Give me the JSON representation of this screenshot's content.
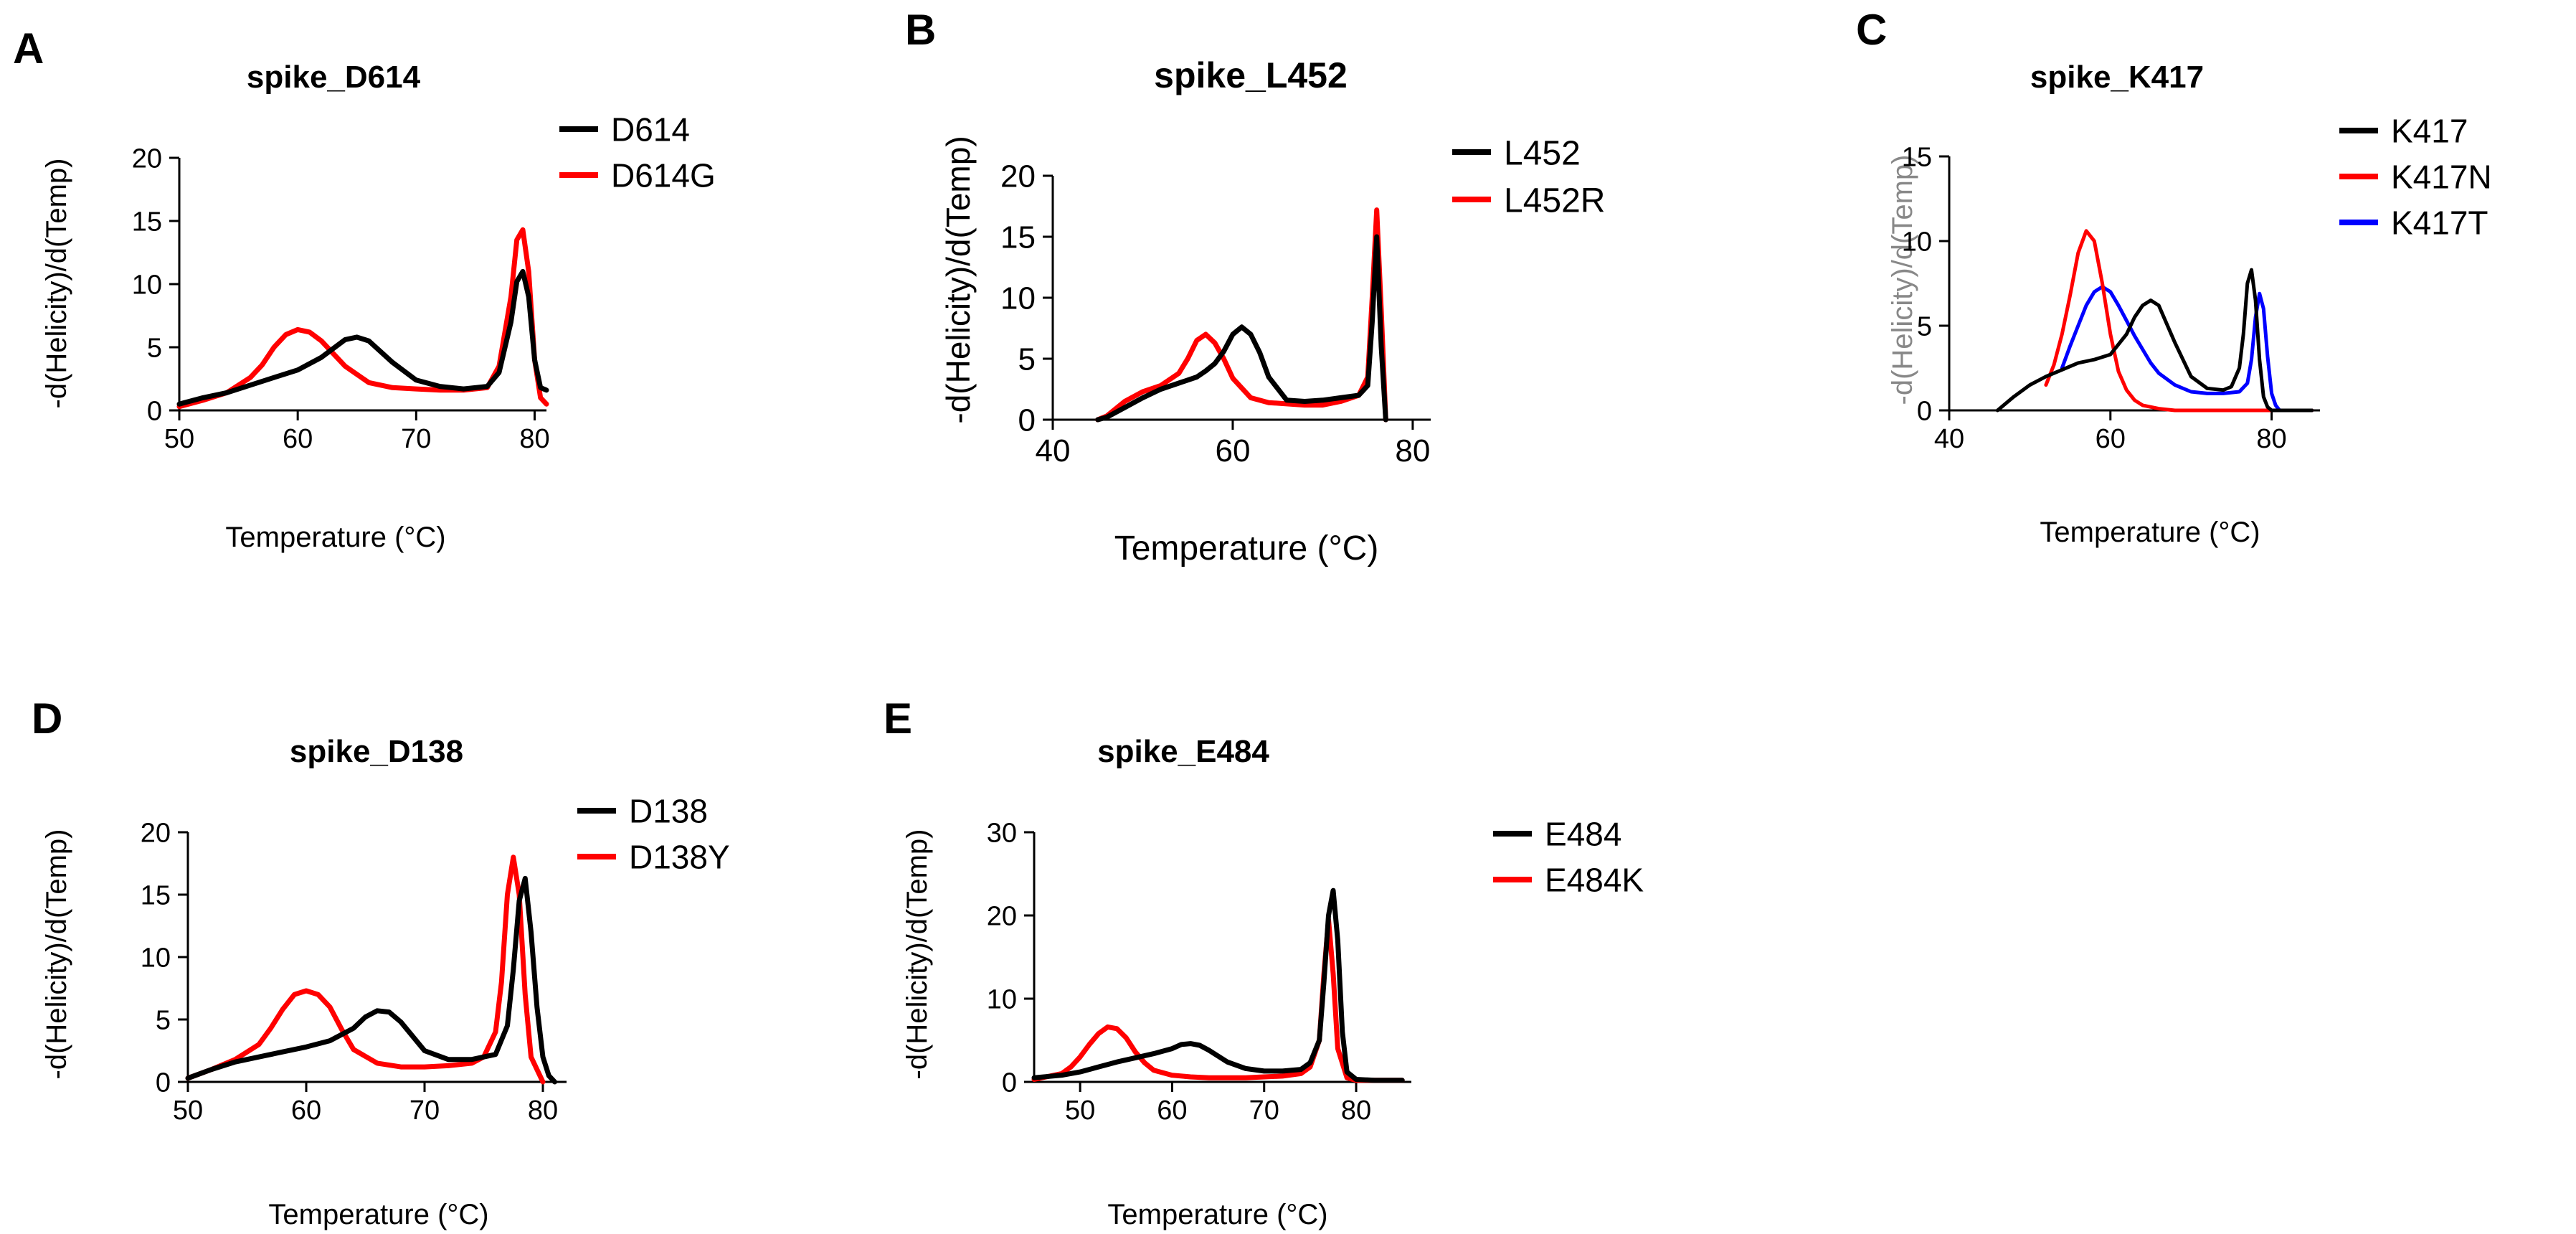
{
  "figure": {
    "chart_data": [
      {
        "panel": "A",
        "type": "line",
        "title": "spike_D614",
        "xlabel": "Temperature (°C)",
        "ylabel": "-d(Helicity)/d(Temp)",
        "xlim": [
          50,
          81
        ],
        "ylim": [
          0,
          20
        ],
        "xticks": [
          50,
          60,
          70,
          80
        ],
        "yticks": [
          0,
          5,
          10,
          15,
          20
        ],
        "legend_position": "top-right",
        "series": [
          {
            "name": "D614",
            "color": "#000000",
            "x": [
              50,
              52,
              54,
              56,
              58,
              60,
              62,
              64,
              65,
              66,
              68,
              70,
              72,
              74,
              76,
              77,
              78,
              78.5,
              79,
              79.5,
              80,
              80.5,
              81
            ],
            "y": [
              0.5,
              1,
              1.4,
              2,
              2.6,
              3.2,
              4.2,
              5.6,
              5.8,
              5.5,
              3.8,
              2.4,
              1.9,
              1.7,
              1.9,
              3,
              7,
              10.2,
              11,
              9,
              4,
              1.8,
              1.6
            ]
          },
          {
            "name": "D614G",
            "color": "#ff0000",
            "x": [
              50,
              52,
              54,
              56,
              57,
              58,
              59,
              60,
              61,
              62,
              63,
              64,
              66,
              68,
              70,
              72,
              74,
              76,
              77,
              78,
              78.5,
              79,
              79.5,
              80,
              80.5,
              81
            ],
            "y": [
              0.3,
              0.8,
              1.4,
              2.6,
              3.6,
              5,
              6,
              6.4,
              6.2,
              5.5,
              4.5,
              3.5,
              2.2,
              1.8,
              1.7,
              1.6,
              1.6,
              1.8,
              3.5,
              9,
              13.5,
              14.3,
              11,
              4,
              1,
              0.5
            ]
          }
        ]
      },
      {
        "panel": "B",
        "type": "line",
        "title": "spike_L452",
        "xlabel": "Temperature (°C)",
        "ylabel": "-d(Helicity)/d(Temp)",
        "xlim": [
          40,
          82
        ],
        "ylim": [
          0,
          20
        ],
        "xticks": [
          40,
          60,
          80
        ],
        "yticks": [
          0,
          5,
          10,
          15,
          20
        ],
        "legend_position": "top-right",
        "series": [
          {
            "name": "L452",
            "color": "#000000",
            "x": [
              45,
              46,
              48,
              50,
              52,
              54,
              56,
              57,
              58,
              59,
              60,
              61,
              62,
              63,
              64,
              66,
              68,
              70,
              72,
              74,
              75,
              75.5,
              76,
              76.5,
              77
            ],
            "y": [
              0,
              0.2,
              1,
              1.8,
              2.5,
              3,
              3.5,
              4,
              4.6,
              5.6,
              7,
              7.6,
              7,
              5.5,
              3.5,
              1.6,
              1.5,
              1.6,
              1.8,
              2,
              2.8,
              8,
              15,
              6,
              0
            ]
          },
          {
            "name": "L452R",
            "color": "#ff0000",
            "x": [
              45,
              46,
              48,
              50,
              52,
              54,
              55,
              56,
              57,
              58,
              59,
              60,
              62,
              64,
              66,
              68,
              70,
              72,
              74,
              75,
              75.5,
              76,
              76.5,
              77
            ],
            "y": [
              0,
              0.3,
              1.5,
              2.3,
              2.8,
              3.8,
              5,
              6.5,
              7,
              6.3,
              5,
              3.4,
              1.8,
              1.4,
              1.3,
              1.2,
              1.2,
              1.5,
              2,
              3.5,
              10,
              17.2,
              9,
              0
            ]
          }
        ]
      },
      {
        "panel": "C",
        "type": "line",
        "title": "spike_K417",
        "xlabel": "Temperature (°C)",
        "ylabel": "-d(Helicity)/d(Temp)",
        "xlim": [
          40,
          86
        ],
        "ylim": [
          0,
          15
        ],
        "xticks": [
          40,
          60,
          80
        ],
        "yticks": [
          0,
          5,
          10,
          15
        ],
        "legend_position": "top-right",
        "series": [
          {
            "name": "K417",
            "color": "#000000",
            "x": [
              46,
              48,
              50,
              52,
              54,
              56,
              58,
              60,
              62,
              63,
              64,
              65,
              66,
              68,
              70,
              72,
              74,
              75,
              76,
              76.5,
              77,
              77.5,
              78,
              78.5,
              79,
              79.5,
              80,
              81,
              83,
              85
            ],
            "y": [
              0,
              0.8,
              1.5,
              2,
              2.4,
              2.8,
              3,
              3.3,
              4.5,
              5.5,
              6.2,
              6.5,
              6.2,
              4,
              2,
              1.3,
              1.2,
              1.4,
              2.5,
              4.5,
              7.5,
              8.3,
              6.5,
              3,
              0.8,
              0.2,
              0,
              0,
              0,
              0
            ]
          },
          {
            "name": "K417N",
            "color": "#ff0000",
            "x": [
              52,
              53,
              54,
              55,
              56,
              57,
              58,
              59,
              60,
              61,
              62,
              63,
              64,
              66,
              68,
              70,
              72,
              74,
              76,
              78,
              80,
              82,
              84,
              85
            ],
            "y": [
              1.5,
              2.7,
              4.5,
              6.8,
              9.3,
              10.6,
              10,
              7.5,
              4.5,
              2.3,
              1.2,
              0.6,
              0.3,
              0.1,
              0,
              0,
              0,
              0,
              0,
              0,
              0,
              0,
              0,
              0
            ]
          },
          {
            "name": "K417T",
            "color": "#0000ff",
            "x": [
              54,
              55,
              56,
              57,
              58,
              59,
              60,
              61,
              62,
              63,
              64,
              65,
              66,
              68,
              70,
              72,
              74,
              76,
              77,
              77.5,
              78,
              78.5,
              79,
              79.5,
              80,
              80.5,
              81,
              82,
              84,
              85
            ],
            "y": [
              2.5,
              3.8,
              5,
              6.2,
              7,
              7.3,
              7,
              6.2,
              5.3,
              4.4,
              3.6,
              2.8,
              2.2,
              1.5,
              1.1,
              1,
              1,
              1.1,
              1.6,
              3,
              5.5,
              6.9,
              6,
              3.2,
              1,
              0.3,
              0,
              0,
              0,
              0
            ]
          }
        ]
      },
      {
        "panel": "D",
        "type": "line",
        "title": "spike_D138",
        "xlabel": "Temperature (°C)",
        "ylabel": "-d(Helicity)/d(Temp)",
        "xlim": [
          50,
          82
        ],
        "ylim": [
          0,
          20
        ],
        "xticks": [
          50,
          60,
          70,
          80
        ],
        "yticks": [
          0,
          5,
          10,
          15,
          20
        ],
        "legend_position": "top-right",
        "series": [
          {
            "name": "D138",
            "color": "#000000",
            "x": [
              50,
              52,
              54,
              56,
              58,
              60,
              62,
              64,
              65,
              66,
              67,
              68,
              70,
              72,
              74,
              76,
              77,
              77.5,
              78,
              78.5,
              79,
              79.5,
              80,
              80.5,
              81
            ],
            "y": [
              0.3,
              1,
              1.6,
              2,
              2.4,
              2.8,
              3.3,
              4.3,
              5.2,
              5.7,
              5.6,
              4.8,
              2.5,
              1.8,
              1.8,
              2.2,
              4.5,
              9,
              14.5,
              16.3,
              12,
              6,
              2,
              0.5,
              0
            ]
          },
          {
            "name": "D138Y",
            "color": "#ff0000",
            "x": [
              50,
              52,
              54,
              56,
              57,
              58,
              59,
              60,
              61,
              62,
              63,
              64,
              66,
              68,
              70,
              72,
              74,
              75,
              76,
              76.5,
              77,
              77.5,
              78,
              78.5,
              79,
              80
            ],
            "y": [
              0.3,
              1,
              1.8,
              3,
              4.3,
              5.8,
              7,
              7.3,
              7,
              6,
              4.2,
              2.6,
              1.5,
              1.2,
              1.2,
              1.3,
              1.5,
              2,
              4,
              8,
              15,
              18,
              15,
              7,
              2,
              0
            ]
          }
        ]
      },
      {
        "panel": "E",
        "type": "line",
        "title": "spike_E484",
        "xlabel": "Temperature (°C)",
        "ylabel": "-d(Helicity)/d(Temp)",
        "xlim": [
          45,
          86
        ],
        "ylim": [
          0,
          30
        ],
        "xticks": [
          50,
          60,
          70,
          80
        ],
        "yticks": [
          0,
          10,
          20,
          30
        ],
        "legend_position": "top-right",
        "series": [
          {
            "name": "E484",
            "color": "#000000",
            "x": [
              45,
              48,
              50,
              52,
              54,
              56,
              58,
              60,
              61,
              62,
              63,
              64,
              66,
              68,
              70,
              72,
              74,
              75,
              76,
              76.5,
              77,
              77.5,
              78,
              78.5,
              79,
              80,
              82,
              84,
              85
            ],
            "y": [
              0.5,
              0.8,
              1.2,
              1.8,
              2.4,
              2.9,
              3.4,
              4,
              4.5,
              4.6,
              4.4,
              3.8,
              2.4,
              1.6,
              1.3,
              1.3,
              1.5,
              2.3,
              5,
              12,
              20,
              23,
              17,
              6,
              1.2,
              0.3,
              0.2,
              0.2,
              0.2
            ]
          },
          {
            "name": "E484K",
            "color": "#ff0000",
            "x": [
              45,
              48,
              49,
              50,
              51,
              52,
              53,
              54,
              55,
              56,
              57,
              58,
              60,
              62,
              64,
              66,
              68,
              70,
              72,
              74,
              75,
              76,
              76.5,
              77,
              77.5,
              78,
              79,
              80,
              82,
              85
            ],
            "y": [
              0.3,
              1,
              1.8,
              3,
              4.5,
              5.8,
              6.6,
              6.4,
              5.3,
              3.6,
              2.3,
              1.4,
              0.8,
              0.6,
              0.5,
              0.5,
              0.5,
              0.6,
              0.7,
              1,
              1.8,
              5,
              13,
              19.5,
              13,
              4,
              0.5,
              0.2,
              0.2,
              0.2
            ]
          }
        ]
      }
    ]
  }
}
